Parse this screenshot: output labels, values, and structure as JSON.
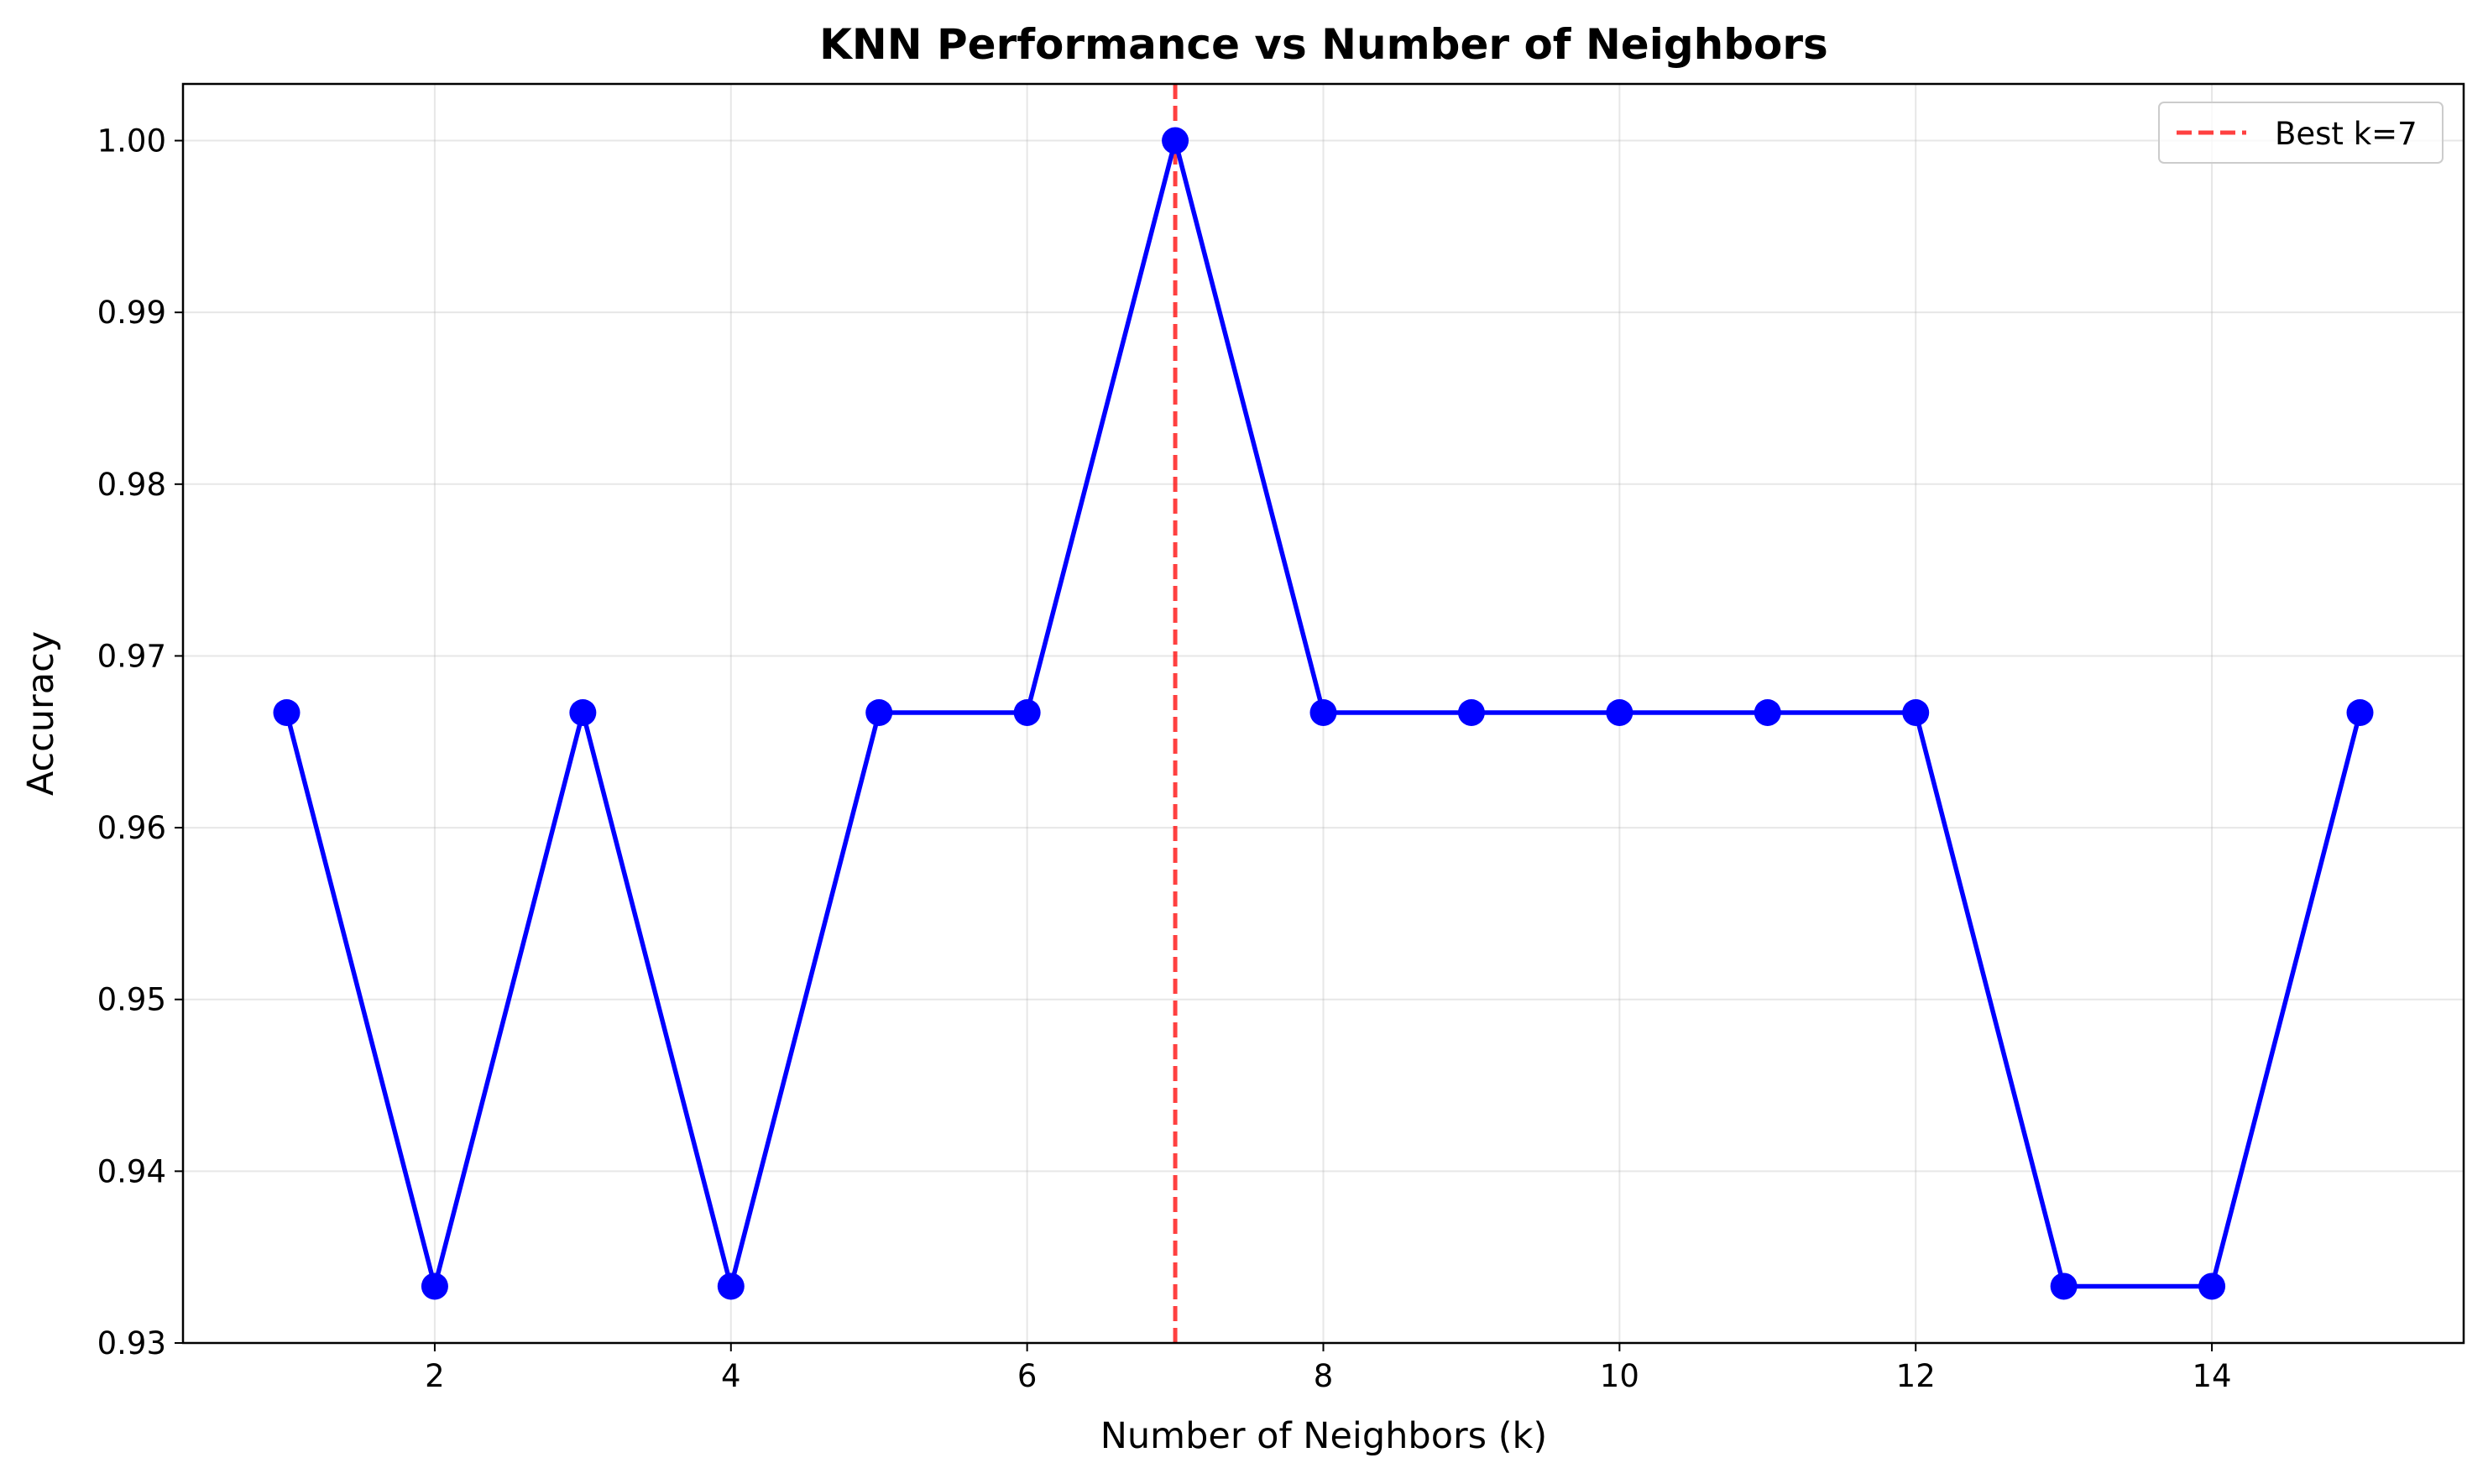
{
  "chart_data": {
    "type": "line",
    "title": "KNN Performance vs Number of Neighbors",
    "xlabel": "Number of Neighbors (k)",
    "ylabel": "Accuracy",
    "xlim": [
      0.3,
      15.7
    ],
    "ylim": [
      0.93,
      1.0033
    ],
    "x_ticks": [
      2,
      4,
      6,
      8,
      10,
      12,
      14
    ],
    "y_ticks": [
      0.93,
      0.94,
      0.95,
      0.96,
      0.97,
      0.98,
      0.99,
      1.0
    ],
    "y_tick_labels": [
      "0.93",
      "0.94",
      "0.95",
      "0.96",
      "0.97",
      "0.98",
      "0.99",
      "1.00"
    ],
    "grid": true,
    "series": [
      {
        "color": "#0000ff",
        "marker": "circle",
        "x": [
          1,
          2,
          3,
          4,
          5,
          6,
          7,
          8,
          9,
          10,
          11,
          12,
          13,
          14,
          15
        ],
        "y": [
          0.9667,
          0.9333,
          0.9667,
          0.9333,
          0.9667,
          0.9667,
          1.0,
          0.9667,
          0.9667,
          0.9667,
          0.9667,
          0.9667,
          0.9333,
          0.9333,
          0.9667
        ]
      }
    ],
    "annotations": [
      {
        "type": "vline",
        "x": 7,
        "color": "#ff0000",
        "style": "dashed",
        "label": "Best k=7"
      }
    ],
    "legend": {
      "placement": "top-right",
      "entries": [
        "Best k=7"
      ]
    }
  }
}
